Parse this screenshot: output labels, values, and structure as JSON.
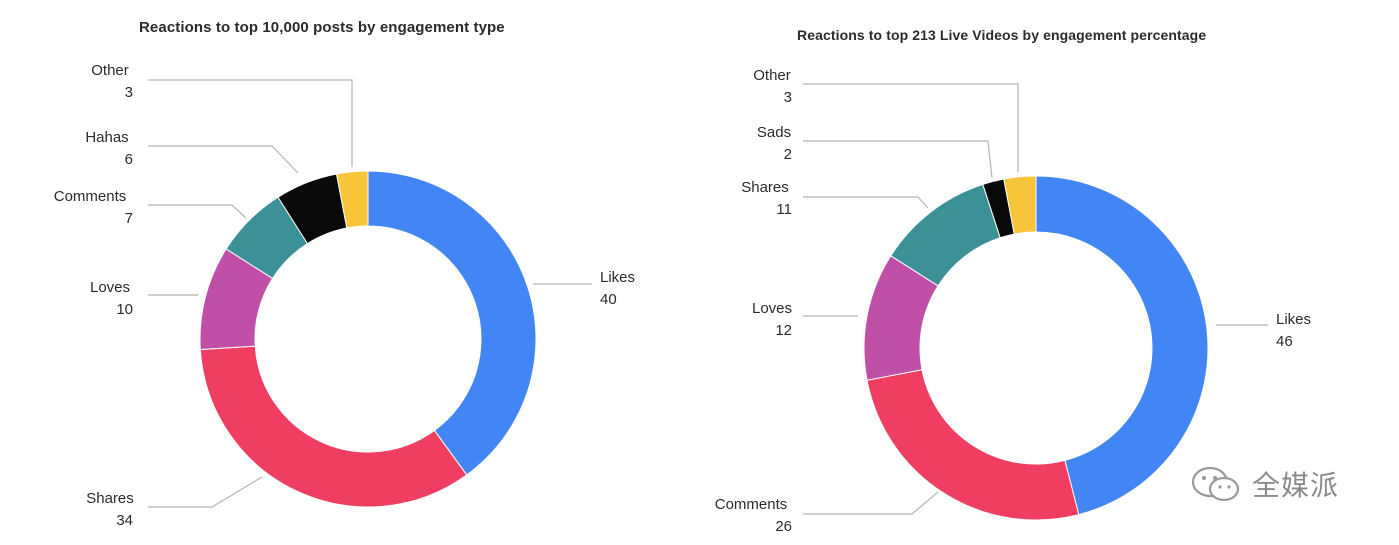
{
  "chart_data": [
    {
      "type": "pie",
      "title": "Reactions to top 10,000 posts by engagement type",
      "slices": [
        {
          "label": "Likes",
          "value": 40,
          "color": "#4285f4"
        },
        {
          "label": "Shares",
          "value": 34,
          "color": "#ef3e61"
        },
        {
          "label": "Loves",
          "value": 10,
          "color": "#c04fa7"
        },
        {
          "label": "Comments",
          "value": 7,
          "color": "#3b9196"
        },
        {
          "label": "Hahas",
          "value": 6,
          "color": "#0a0a0a"
        },
        {
          "label": "Other",
          "value": 3,
          "color": "#f8c43a"
        }
      ],
      "donut": true,
      "legend": "none"
    },
    {
      "type": "pie",
      "title": "Reactions to top 213 Live Videos by engagement percentage",
      "slices": [
        {
          "label": "Likes",
          "value": 46,
          "color": "#4285f4"
        },
        {
          "label": "Comments",
          "value": 26,
          "color": "#ef3e61"
        },
        {
          "label": "Loves",
          "value": 12,
          "color": "#c04fa7"
        },
        {
          "label": "Shares",
          "value": 11,
          "color": "#3b9196"
        },
        {
          "label": "Sads",
          "value": 2,
          "color": "#0a0a0a"
        },
        {
          "label": "Other",
          "value": 3,
          "color": "#f8c43a"
        }
      ],
      "donut": true,
      "legend": "none"
    }
  ],
  "watermark": {
    "text": "全媒派",
    "icon": "wechat-logo-icon"
  }
}
